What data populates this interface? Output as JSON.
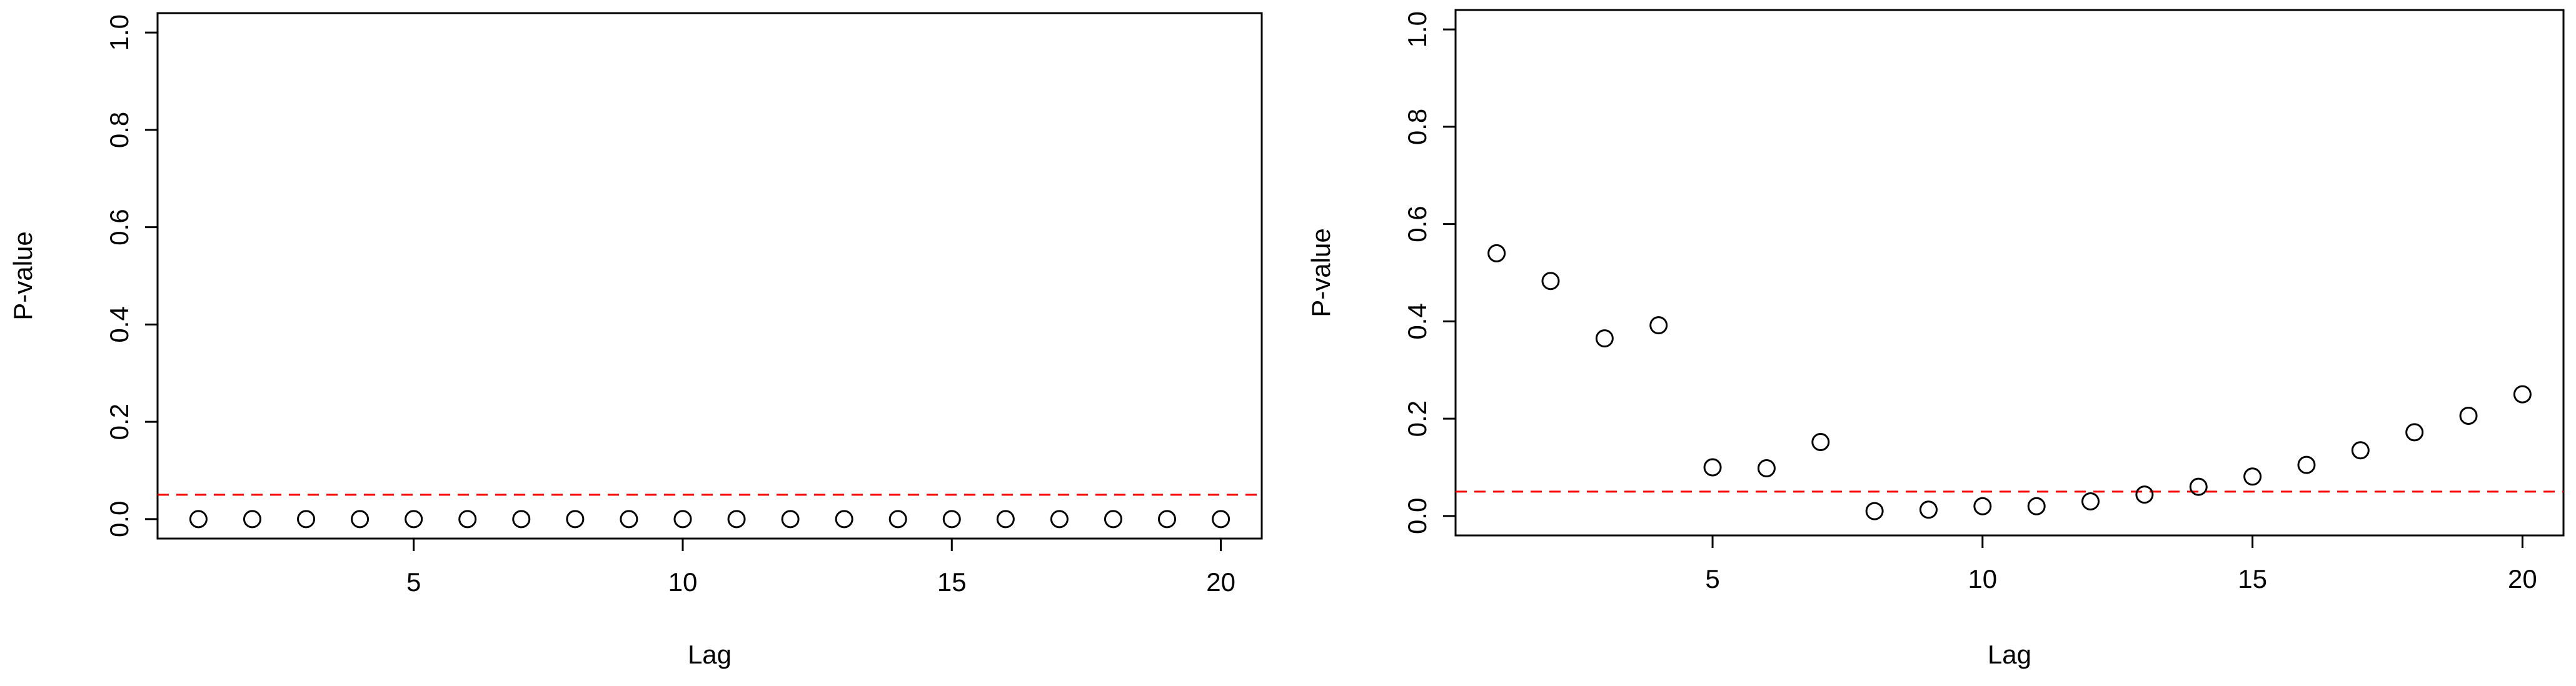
{
  "chart_data": [
    {
      "type": "scatter",
      "x_label": "Lag",
      "y_label": "P-value",
      "x": [
        1,
        2,
        3,
        4,
        5,
        6,
        7,
        8,
        9,
        10,
        11,
        12,
        13,
        14,
        15,
        16,
        17,
        18,
        19,
        20
      ],
      "values": [
        0,
        0,
        0,
        0,
        0,
        0,
        0,
        0,
        0,
        0,
        0,
        0,
        0,
        0,
        0,
        0,
        0,
        0,
        0,
        0
      ],
      "color": "#000000",
      "hline": {
        "value": 0.05,
        "color": "#ff0000"
      },
      "xlim": [
        0.24,
        20.76
      ],
      "ylim": [
        -0.04,
        1.04
      ],
      "xticks": [
        5,
        10,
        15,
        20
      ],
      "yticks": [
        {
          "value": 0,
          "label": "0.0"
        },
        0.2,
        0.4,
        0.6,
        0.8,
        {
          "value": 1,
          "label": "1.0"
        }
      ]
    },
    {
      "type": "scatter",
      "x_label": "Lag",
      "y_label": "P-value",
      "x": [
        1,
        2,
        3,
        4,
        5,
        6,
        7,
        8,
        9,
        10,
        11,
        12,
        13,
        14,
        15,
        16,
        17,
        18,
        19,
        20
      ],
      "values": [
        0.54,
        0.483,
        0.365,
        0.392,
        0.1,
        0.098,
        0.152,
        0.01,
        0.013,
        0.02,
        0.02,
        0.03,
        0.044,
        0.06,
        0.081,
        0.105,
        0.135,
        0.172,
        0.206,
        0.25
      ],
      "color": "#000000",
      "hline": {
        "value": 0.05,
        "color": "#ff0000"
      },
      "xlim": [
        0.24,
        20.76
      ],
      "ylim": [
        -0.04,
        1.04
      ],
      "xticks": [
        5,
        10,
        15,
        20
      ],
      "yticks": [
        {
          "value": 0,
          "label": "0.0"
        },
        0.2,
        0.4,
        0.6,
        0.8,
        {
          "value": 1,
          "label": "1.0"
        }
      ]
    }
  ]
}
